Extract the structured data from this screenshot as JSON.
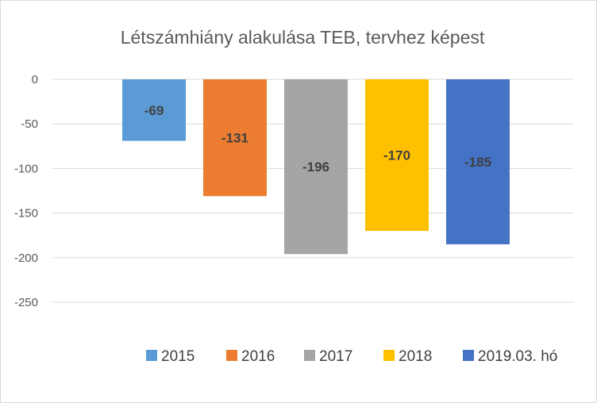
{
  "chart_data": {
    "type": "bar",
    "title": "Létszámhiány alakulása TEB, tervhez képest",
    "xlabel": "",
    "ylabel": "",
    "categories": [
      "2015",
      "2016",
      "2017",
      "2018",
      "2019.03. hó"
    ],
    "values": [
      -69,
      -131,
      -196,
      -170,
      -185
    ],
    "colors": [
      "#5b9bd5",
      "#ed7d31",
      "#a5a5a5",
      "#ffc000",
      "#4472c4"
    ],
    "data_labels": [
      "-69",
      "-131",
      "-196",
      "-170",
      "-185"
    ],
    "ylim": [
      -250,
      0
    ],
    "yticks": [
      0,
      -50,
      -100,
      -150,
      -200,
      -250
    ],
    "ytick_labels": [
      "0",
      "-50",
      "-100",
      "-150",
      "-200",
      "-250"
    ],
    "grid": true,
    "legend_position": "bottom",
    "gridline_color": "#d9d9d9",
    "label_color": "#404040"
  }
}
